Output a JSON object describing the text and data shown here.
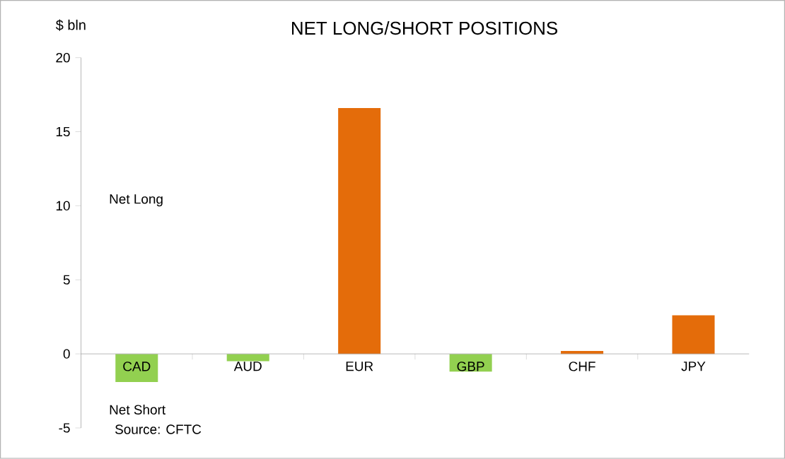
{
  "chart_data": {
    "type": "bar",
    "title": "NET LONG/SHORT POSITIONS",
    "ylabel": "$ bln",
    "categories": [
      "CAD",
      "AUD",
      "EUR",
      "GBP",
      "CHF",
      "JPY"
    ],
    "values": [
      -1.9,
      -0.5,
      16.6,
      -1.2,
      0.2,
      2.6
    ],
    "colors": [
      "#92d050",
      "#92d050",
      "#e46c0a",
      "#92d050",
      "#e46c0a",
      "#e46c0a"
    ],
    "ylim": [
      -5,
      20
    ],
    "yticks": [
      -5,
      0,
      5,
      10,
      15,
      20
    ],
    "grid": false,
    "annotations": [
      "Net Long",
      "Net Short",
      "Source: CFTC"
    ]
  }
}
